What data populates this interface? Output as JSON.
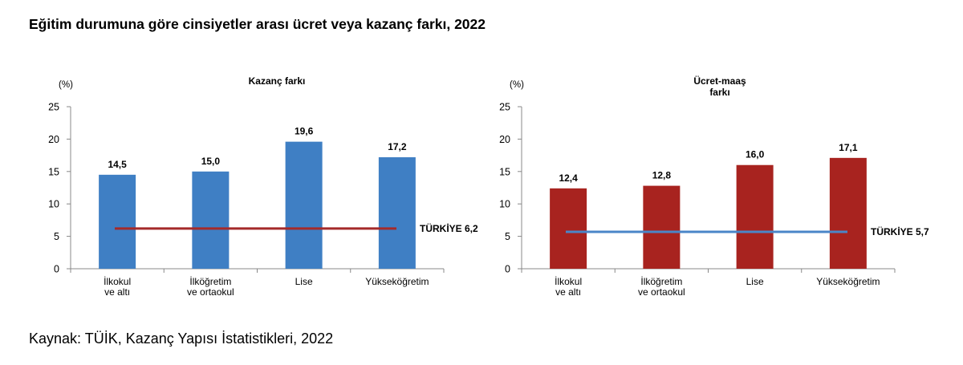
{
  "page": {
    "title": "Eğitim durumuna göre cinsiyetler arası ücret veya kazanç farkı, 2022",
    "source": "Kaynak: TÜİK, Kazanç Yapısı İstatistikleri, 2022"
  },
  "chart_data": [
    {
      "type": "bar",
      "title": [
        "Kazanç farkı"
      ],
      "unit_label": "(%)",
      "categories": [
        [
          "İlkokul",
          "ve altı"
        ],
        [
          "İlköğretim",
          "ve ortaokul"
        ],
        [
          "Lise"
        ],
        [
          "Yükseköğretim"
        ]
      ],
      "values": [
        14.5,
        15.0,
        19.6,
        17.2
      ],
      "value_labels": [
        "14,5",
        "15,0",
        "19,6",
        "17,2"
      ],
      "bar_color": "#3F7FC4",
      "ylim": [
        0,
        25
      ],
      "yticks": [
        0,
        5,
        10,
        15,
        20,
        25
      ],
      "reference_line": {
        "label": "TÜRKİYE 6,2",
        "value": 6.2,
        "color": "#A52A2A"
      }
    },
    {
      "type": "bar",
      "title": [
        "Ücret-maaş",
        "farkı"
      ],
      "unit_label": "(%)",
      "categories": [
        [
          "İlkokul",
          "ve altı"
        ],
        [
          "İlköğretim",
          "ve ortaokul"
        ],
        [
          "Lise"
        ],
        [
          "Yükseköğretim"
        ]
      ],
      "values": [
        12.4,
        12.8,
        16.0,
        17.1
      ],
      "value_labels": [
        "12,4",
        "12,8",
        "16,0",
        "17,1"
      ],
      "bar_color": "#A8231F",
      "ylim": [
        0,
        25
      ],
      "yticks": [
        0,
        5,
        10,
        15,
        20,
        25
      ],
      "reference_line": {
        "label": "TÜRKİYE 5,7",
        "value": 5.7,
        "color": "#4A86C8"
      }
    }
  ]
}
